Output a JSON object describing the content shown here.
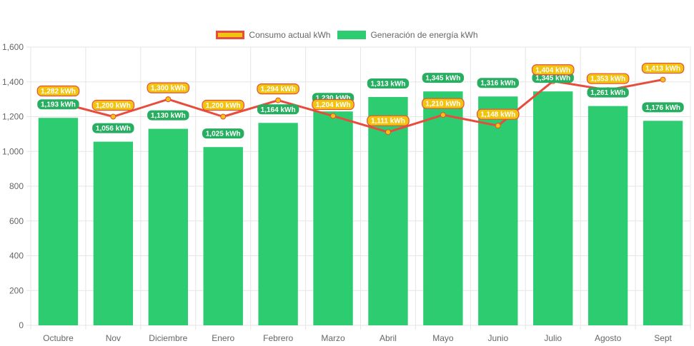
{
  "chart_data": {
    "type": "bar",
    "categories": [
      "Octubre",
      "Nov",
      "Diciembre",
      "Enero",
      "Febrero",
      "Marzo",
      "Abril",
      "Mayo",
      "Junio",
      "Julio",
      "Agosto",
      "Sept"
    ],
    "series": [
      {
        "name": "Consumo actual kWh",
        "type": "line",
        "color": "#e74c3c",
        "point_color": "#f1c40f",
        "values": [
          1282,
          1200,
          1300,
          1200,
          1294,
          1204,
          1111,
          1210,
          1148,
          1404,
          1353,
          1413
        ],
        "labels": [
          "1,282 kWh",
          "1,200 kWh",
          "1,300 kWh",
          "1,200 kWh",
          "1,294 kWh",
          "1,204 kWh",
          "1,111 kWh",
          "1,210 kWh",
          "1,148 kWh",
          "1,404 kWh",
          "1,353 kWh",
          "1,413 kWh"
        ]
      },
      {
        "name": "Generación de energía kWh",
        "type": "bar",
        "color": "#2ecc71",
        "values": [
          1193,
          1056,
          1130,
          1025,
          1164,
          1230,
          1313,
          1345,
          1316,
          1345,
          1261,
          1176
        ],
        "labels": [
          "1,193 kWh",
          "1,056 kWh",
          "1,130 kWh",
          "1,025 kWh",
          "1,164 kWh",
          "1,230 kWh",
          "1,313 kWh",
          "1,345 kWh",
          "1,316 kWh",
          "1,345 kWh",
          "1,261 kWh",
          "1,176 kWh"
        ]
      }
    ],
    "ylim": [
      0,
      1600
    ],
    "yticks": [
      0,
      200,
      400,
      600,
      800,
      1000,
      1200,
      1400,
      1600
    ],
    "ytick_labels": [
      "0",
      "200",
      "400",
      "600",
      "800",
      "1,000",
      "1,200",
      "1,400",
      "1,600"
    ],
    "title": "",
    "xlabel": "",
    "ylabel": "",
    "grid": true,
    "legend_position": "top-center"
  },
  "legend": {
    "consumo_label": "Consumo actual kWh",
    "generacion_label": "Generación de energía kWh"
  }
}
